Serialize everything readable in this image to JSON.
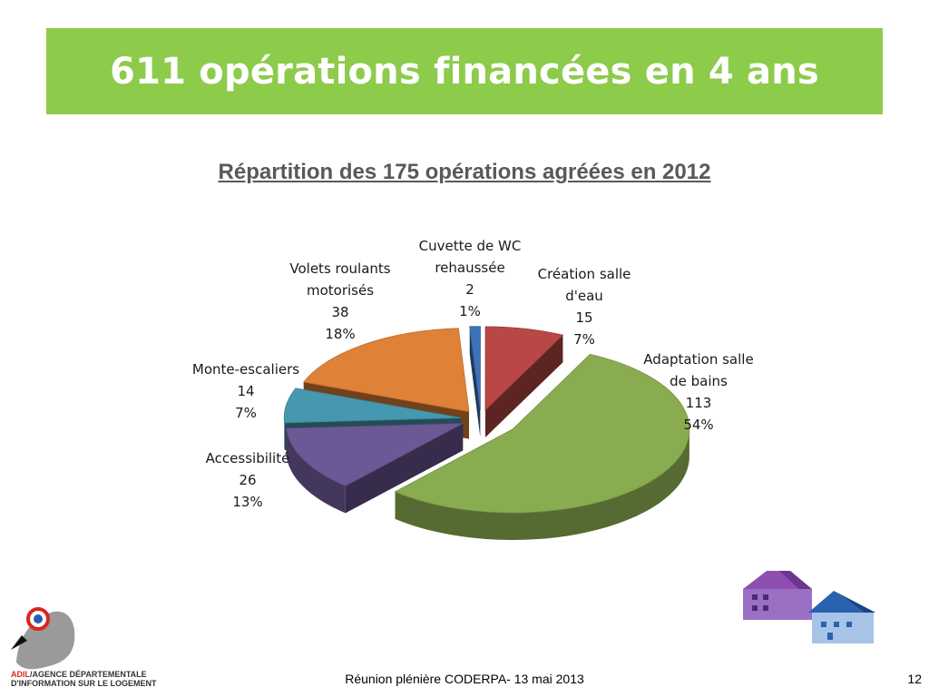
{
  "slide": {
    "title": "611 opérations financées en 4 ans",
    "footer": "Réunion plénière CODERPA- 13 mai 2013",
    "page_number": "12"
  },
  "logo": {
    "brand": "ADIL",
    "line1": "/AGENCE DÉPARTEMENTALE",
    "line2": "D'INFORMATION SUR LE LOGEMENT"
  },
  "colors": {
    "banner": "#8dcb4b",
    "adaptation": "#8aac50",
    "accessibilite": "#6d5896",
    "monte": "#4598b0",
    "volets": "#df8136",
    "cuvette": "#3f73b8",
    "creation": "#b84745"
  },
  "chart_data": {
    "type": "pie",
    "title": "Répartition des 175 opérations agréées en 2012",
    "total": 175,
    "legend": "none",
    "slices": [
      {
        "name": "Adaptation salle de bains",
        "label_lines": [
          "Adaptation salle",
          "de bains"
        ],
        "value": 113,
        "percent": "54%"
      },
      {
        "name": "Accessibilité",
        "label_lines": [
          "Accessibilité"
        ],
        "value": 26,
        "percent": "13%"
      },
      {
        "name": "Monte-escaliers",
        "label_lines": [
          "Monte-escaliers"
        ],
        "value": 14,
        "percent": "7%"
      },
      {
        "name": "Volets roulants motorisés",
        "label_lines": [
          "Volets roulants",
          "motorisés"
        ],
        "value": 38,
        "percent": "18%"
      },
      {
        "name": "Cuvette de WC rehaussée",
        "label_lines": [
          "Cuvette de WC",
          "rehaussée"
        ],
        "value": 2,
        "percent": "1%"
      },
      {
        "name": "Création salle d'eau",
        "label_lines": [
          "Création salle",
          "d'eau"
        ],
        "value": 15,
        "percent": "7%"
      }
    ]
  }
}
